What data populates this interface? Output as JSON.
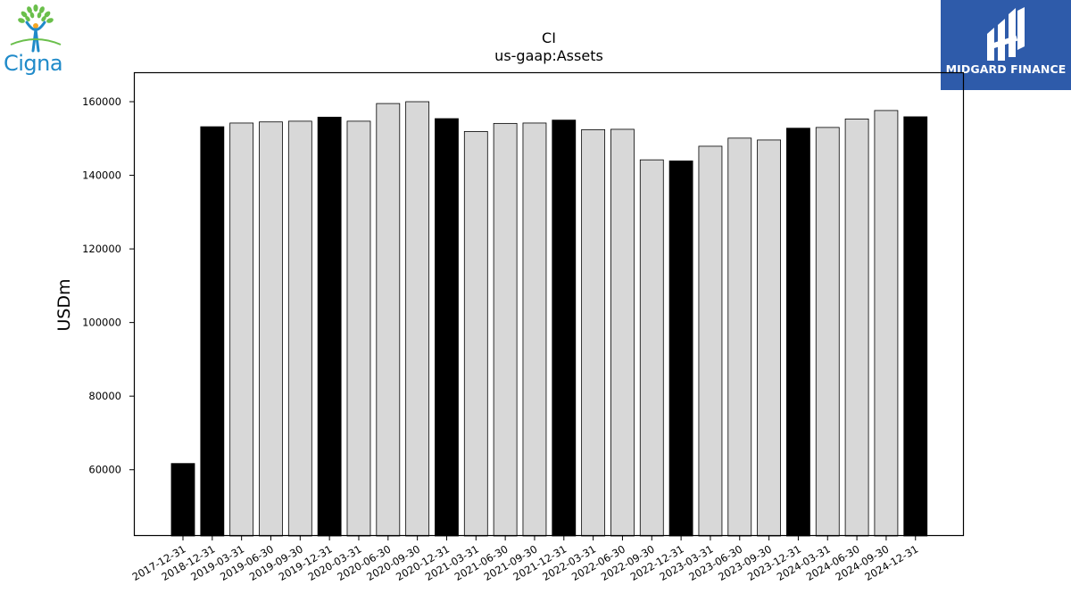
{
  "logos": {
    "company_wordmark": "Cigna",
    "publisher": "MIDGARD FINANCE"
  },
  "colors": {
    "annual_bar": "#000000",
    "quarterly_bar": "#d8d8d8",
    "bar_edge": "#000000",
    "cigna_blue": "#1f8ac9",
    "cigna_green": "#6abf4b",
    "cigna_orange": "#f5a623",
    "midgard_blue": "#2e5baa"
  },
  "chart_data": {
    "type": "bar",
    "title": "CI",
    "subtitle": "us-gaap:Assets",
    "xlabel": "",
    "ylabel": "USDm",
    "ylim": [
      42000,
      168000
    ],
    "yticks": [
      60000,
      80000,
      100000,
      120000,
      140000,
      160000
    ],
    "grid": false,
    "legend": "none",
    "categories": [
      "2017-12-31",
      "2018-12-31",
      "2019-03-31",
      "2019-06-30",
      "2019-09-30",
      "2019-12-31",
      "2020-03-31",
      "2020-06-30",
      "2020-09-30",
      "2020-12-31",
      "2021-03-31",
      "2021-06-30",
      "2021-09-30",
      "2021-12-31",
      "2022-03-31",
      "2022-06-30",
      "2022-09-30",
      "2022-12-31",
      "2023-03-31",
      "2023-06-30",
      "2023-09-30",
      "2023-12-31",
      "2024-03-31",
      "2024-06-30",
      "2024-09-30",
      "2024-12-31"
    ],
    "values": [
      61700,
      153200,
      154200,
      154500,
      154700,
      155800,
      154700,
      159500,
      160000,
      155400,
      151900,
      154100,
      154200,
      155000,
      152400,
      152500,
      144200,
      143900,
      147900,
      150100,
      149600,
      152800,
      153000,
      155300,
      157600,
      155900
    ],
    "bar_kind": [
      "annual",
      "annual",
      "quarterly",
      "quarterly",
      "quarterly",
      "annual",
      "quarterly",
      "quarterly",
      "quarterly",
      "annual",
      "quarterly",
      "quarterly",
      "quarterly",
      "annual",
      "quarterly",
      "quarterly",
      "quarterly",
      "annual",
      "quarterly",
      "quarterly",
      "quarterly",
      "annual",
      "quarterly",
      "quarterly",
      "quarterly",
      "annual"
    ]
  }
}
